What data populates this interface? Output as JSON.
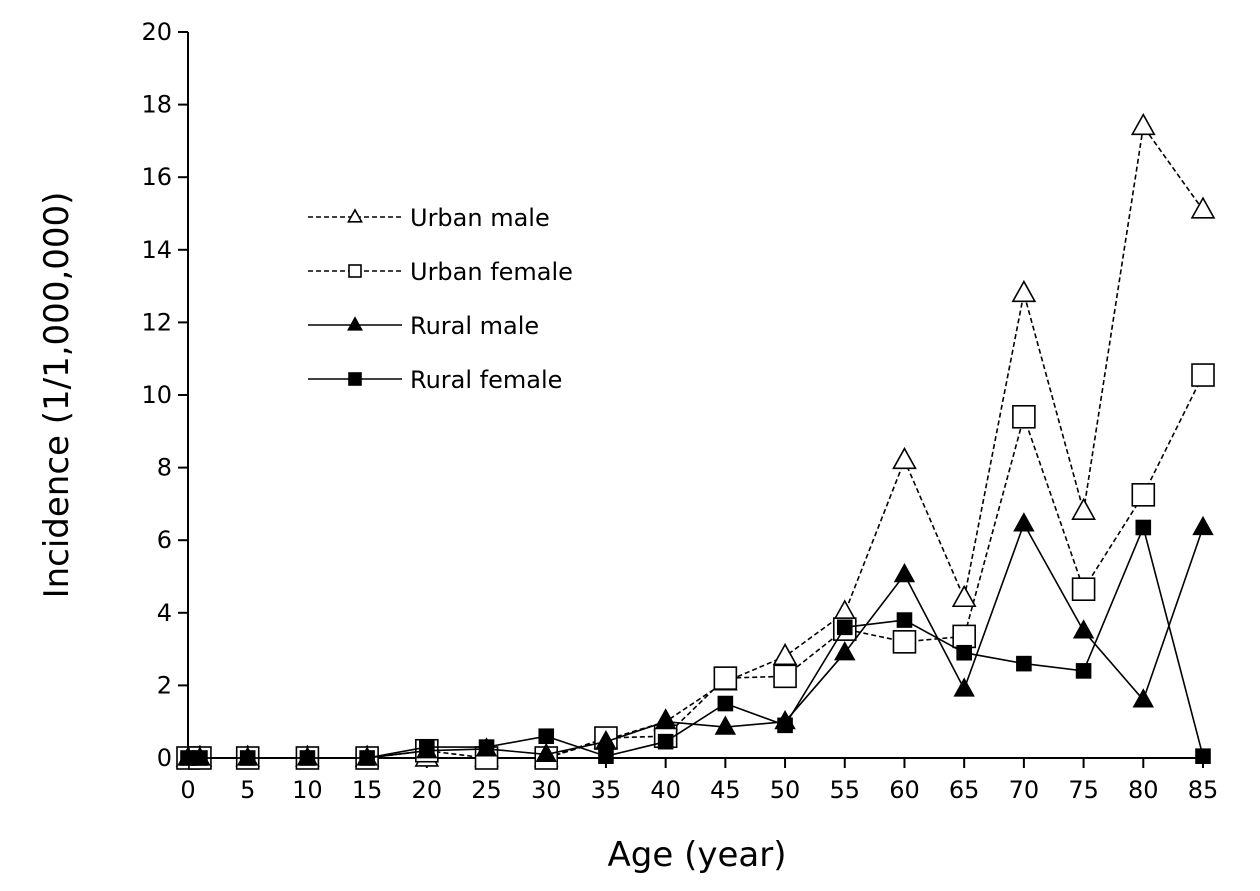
{
  "chart_data": {
    "type": "line",
    "xlabel": "Age (year)",
    "ylabel": "Incidence (1/1,000,000)",
    "xlim": [
      0,
      85
    ],
    "ylim": [
      0,
      20
    ],
    "x_ticks": [
      0,
      5,
      10,
      15,
      20,
      25,
      30,
      35,
      40,
      45,
      50,
      55,
      60,
      65,
      70,
      75,
      80,
      85
    ],
    "y_ticks": [
      0,
      2,
      4,
      6,
      8,
      10,
      12,
      14,
      16,
      18,
      20
    ],
    "grid": false,
    "legend_position": "upper-left",
    "series": [
      {
        "name": "Urban male",
        "line": "dashed",
        "marker": "triangle-open",
        "points": [
          [
            0,
            0
          ],
          [
            1,
            0
          ],
          [
            5,
            0
          ],
          [
            10,
            0
          ],
          [
            15,
            0
          ],
          [
            20,
            0
          ],
          [
            25,
            0
          ],
          [
            30,
            0
          ],
          [
            35,
            0.5
          ],
          [
            40,
            1.0
          ],
          [
            45,
            2.1
          ],
          [
            50,
            2.8
          ],
          [
            55,
            4.0
          ],
          [
            60,
            8.2
          ],
          [
            65,
            4.4
          ],
          [
            70,
            12.8
          ],
          [
            75,
            6.8
          ],
          [
            80,
            17.4
          ],
          [
            85,
            15.1
          ]
        ]
      },
      {
        "name": "Urban female",
        "line": "dashed",
        "marker": "square-open",
        "points": [
          [
            0,
            0
          ],
          [
            1,
            0
          ],
          [
            5,
            0
          ],
          [
            10,
            0
          ],
          [
            15,
            0
          ],
          [
            20,
            0.2
          ],
          [
            25,
            0
          ],
          [
            30,
            0
          ],
          [
            35,
            0.55
          ],
          [
            40,
            0.6
          ],
          [
            45,
            2.2
          ],
          [
            50,
            2.25
          ],
          [
            55,
            3.55
          ],
          [
            60,
            3.2
          ],
          [
            65,
            3.35
          ],
          [
            70,
            9.4
          ],
          [
            75,
            4.65
          ],
          [
            80,
            7.25
          ],
          [
            85,
            10.55
          ]
        ]
      },
      {
        "name": "Rural male",
        "line": "solid",
        "marker": "triangle-filled",
        "points": [
          [
            0,
            0
          ],
          [
            1,
            0
          ],
          [
            5,
            0
          ],
          [
            10,
            0
          ],
          [
            15,
            0
          ],
          [
            20,
            0.2
          ],
          [
            25,
            0.25
          ],
          [
            30,
            0.1
          ],
          [
            35,
            0.45
          ],
          [
            40,
            1.0
          ],
          [
            45,
            0.85
          ],
          [
            50,
            1.0
          ],
          [
            55,
            2.9
          ],
          [
            60,
            5.05
          ],
          [
            65,
            1.9
          ],
          [
            70,
            6.45
          ],
          [
            75,
            3.5
          ],
          [
            80,
            1.6
          ],
          [
            85,
            6.35
          ]
        ]
      },
      {
        "name": "Rural female",
        "line": "solid",
        "marker": "square-filled",
        "points": [
          [
            0,
            0
          ],
          [
            1,
            0
          ],
          [
            5,
            0
          ],
          [
            10,
            0
          ],
          [
            15,
            0
          ],
          [
            20,
            0.3
          ],
          [
            25,
            0.3
          ],
          [
            30,
            0.6
          ],
          [
            35,
            0.05
          ],
          [
            40,
            0.45
          ],
          [
            45,
            1.5
          ],
          [
            50,
            0.9
          ],
          [
            55,
            3.6
          ],
          [
            60,
            3.8
          ],
          [
            65,
            2.9
          ],
          [
            70,
            2.6
          ],
          [
            75,
            2.4
          ],
          [
            80,
            6.35
          ],
          [
            85,
            0.05
          ]
        ]
      }
    ]
  }
}
